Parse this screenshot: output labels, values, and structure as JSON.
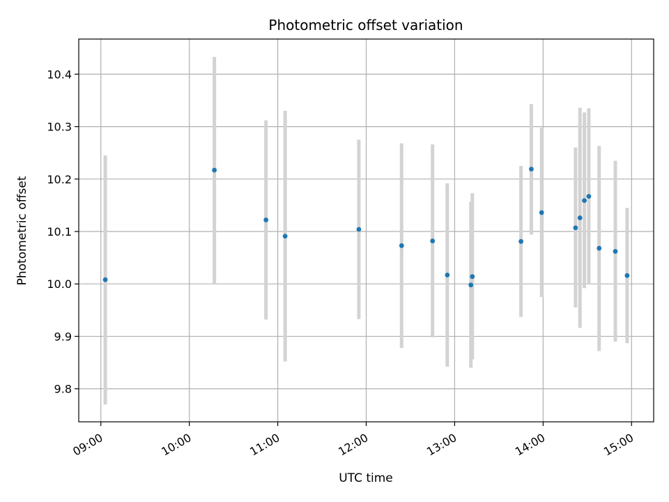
{
  "chart_data": {
    "type": "scatter",
    "title": "Photometric offset variation",
    "xlabel": "UTC time",
    "ylabel": "Photometric offset",
    "x_ticks": [
      "09:00",
      "10:00",
      "11:00",
      "12:00",
      "13:00",
      "14:00",
      "15:00"
    ],
    "y_ticks": [
      "9.8",
      "9.9",
      "10.0",
      "10.1",
      "10.2",
      "10.3",
      "10.4"
    ],
    "xlim": [
      "08:45",
      "15:15"
    ],
    "ylim": [
      9.737,
      10.467
    ],
    "grid": true,
    "point_color": "#1f77b4",
    "errorbar_color": "#d3d3d3",
    "points": [
      {
        "time": "09:03",
        "value": 10.008,
        "low": 9.77,
        "high": 10.245
      },
      {
        "time": "10:17",
        "value": 10.217,
        "low": 10.0,
        "high": 10.433
      },
      {
        "time": "10:52",
        "value": 10.122,
        "low": 9.932,
        "high": 10.312
      },
      {
        "time": "11:05",
        "value": 10.091,
        "low": 9.852,
        "high": 10.33
      },
      {
        "time": "11:55",
        "value": 10.104,
        "low": 9.933,
        "high": 10.275
      },
      {
        "time": "12:24",
        "value": 10.073,
        "low": 9.878,
        "high": 10.268
      },
      {
        "time": "12:45",
        "value": 10.082,
        "low": 9.898,
        "high": 10.266
      },
      {
        "time": "12:55",
        "value": 10.017,
        "low": 9.842,
        "high": 10.192
      },
      {
        "time": "13:11",
        "value": 9.998,
        "low": 9.84,
        "high": 10.157
      },
      {
        "time": "13:12",
        "value": 10.014,
        "low": 9.856,
        "high": 10.173
      },
      {
        "time": "13:45",
        "value": 10.081,
        "low": 9.937,
        "high": 10.225
      },
      {
        "time": "13:52",
        "value": 10.219,
        "low": 10.094,
        "high": 10.343
      },
      {
        "time": "13:59",
        "value": 10.136,
        "low": 9.975,
        "high": 10.298
      },
      {
        "time": "14:22",
        "value": 10.107,
        "low": 9.955,
        "high": 10.26
      },
      {
        "time": "14:25",
        "value": 10.126,
        "low": 9.916,
        "high": 10.336
      },
      {
        "time": "14:28",
        "value": 10.159,
        "low": 9.992,
        "high": 10.327
      },
      {
        "time": "14:31",
        "value": 10.167,
        "low": 10.0,
        "high": 10.335
      },
      {
        "time": "14:38",
        "value": 10.068,
        "low": 9.872,
        "high": 10.263
      },
      {
        "time": "14:49",
        "value": 10.062,
        "low": 9.89,
        "high": 10.235
      },
      {
        "time": "14:57",
        "value": 10.016,
        "low": 9.887,
        "high": 10.145
      }
    ]
  }
}
